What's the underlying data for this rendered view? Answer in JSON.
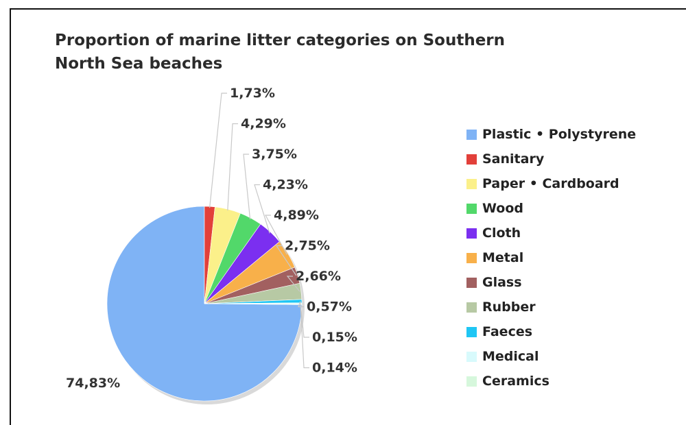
{
  "chart_data": {
    "type": "pie",
    "title": "Proportion of marine litter categories on  Southern North Sea beaches",
    "slices": [
      {
        "name": "Plastic • Polystyrene",
        "value": 74.83,
        "label": "74,83%",
        "color": "#7fb3f5"
      },
      {
        "name": "Sanitary",
        "value": 1.73,
        "label": "1,73%",
        "color": "#e2403a"
      },
      {
        "name": "Paper • Cardboard",
        "value": 4.29,
        "label": "4,29%",
        "color": "#fbf08a"
      },
      {
        "name": "Wood",
        "value": 3.75,
        "label": "3,75%",
        "color": "#52d86a"
      },
      {
        "name": "Cloth",
        "value": 4.23,
        "label": "4,23%",
        "color": "#7b2ff0"
      },
      {
        "name": "Metal",
        "value": 4.89,
        "label": "4,89%",
        "color": "#f8b04a"
      },
      {
        "name": "Glass",
        "value": 2.75,
        "label": "2,75%",
        "color": "#a26060"
      },
      {
        "name": "Rubber",
        "value": 2.66,
        "label": "2,66%",
        "color": "#b7c9a4"
      },
      {
        "name": "Faeces",
        "value": 0.57,
        "label": "0,57%",
        "color": "#1fc6f4"
      },
      {
        "name": "Medical",
        "value": 0.15,
        "label": "0,15%",
        "color": "#d8fafc"
      },
      {
        "name": "Ceramics",
        "value": 0.14,
        "label": "0,14%",
        "color": "#d6f7dc"
      }
    ],
    "legend_position": "right"
  }
}
